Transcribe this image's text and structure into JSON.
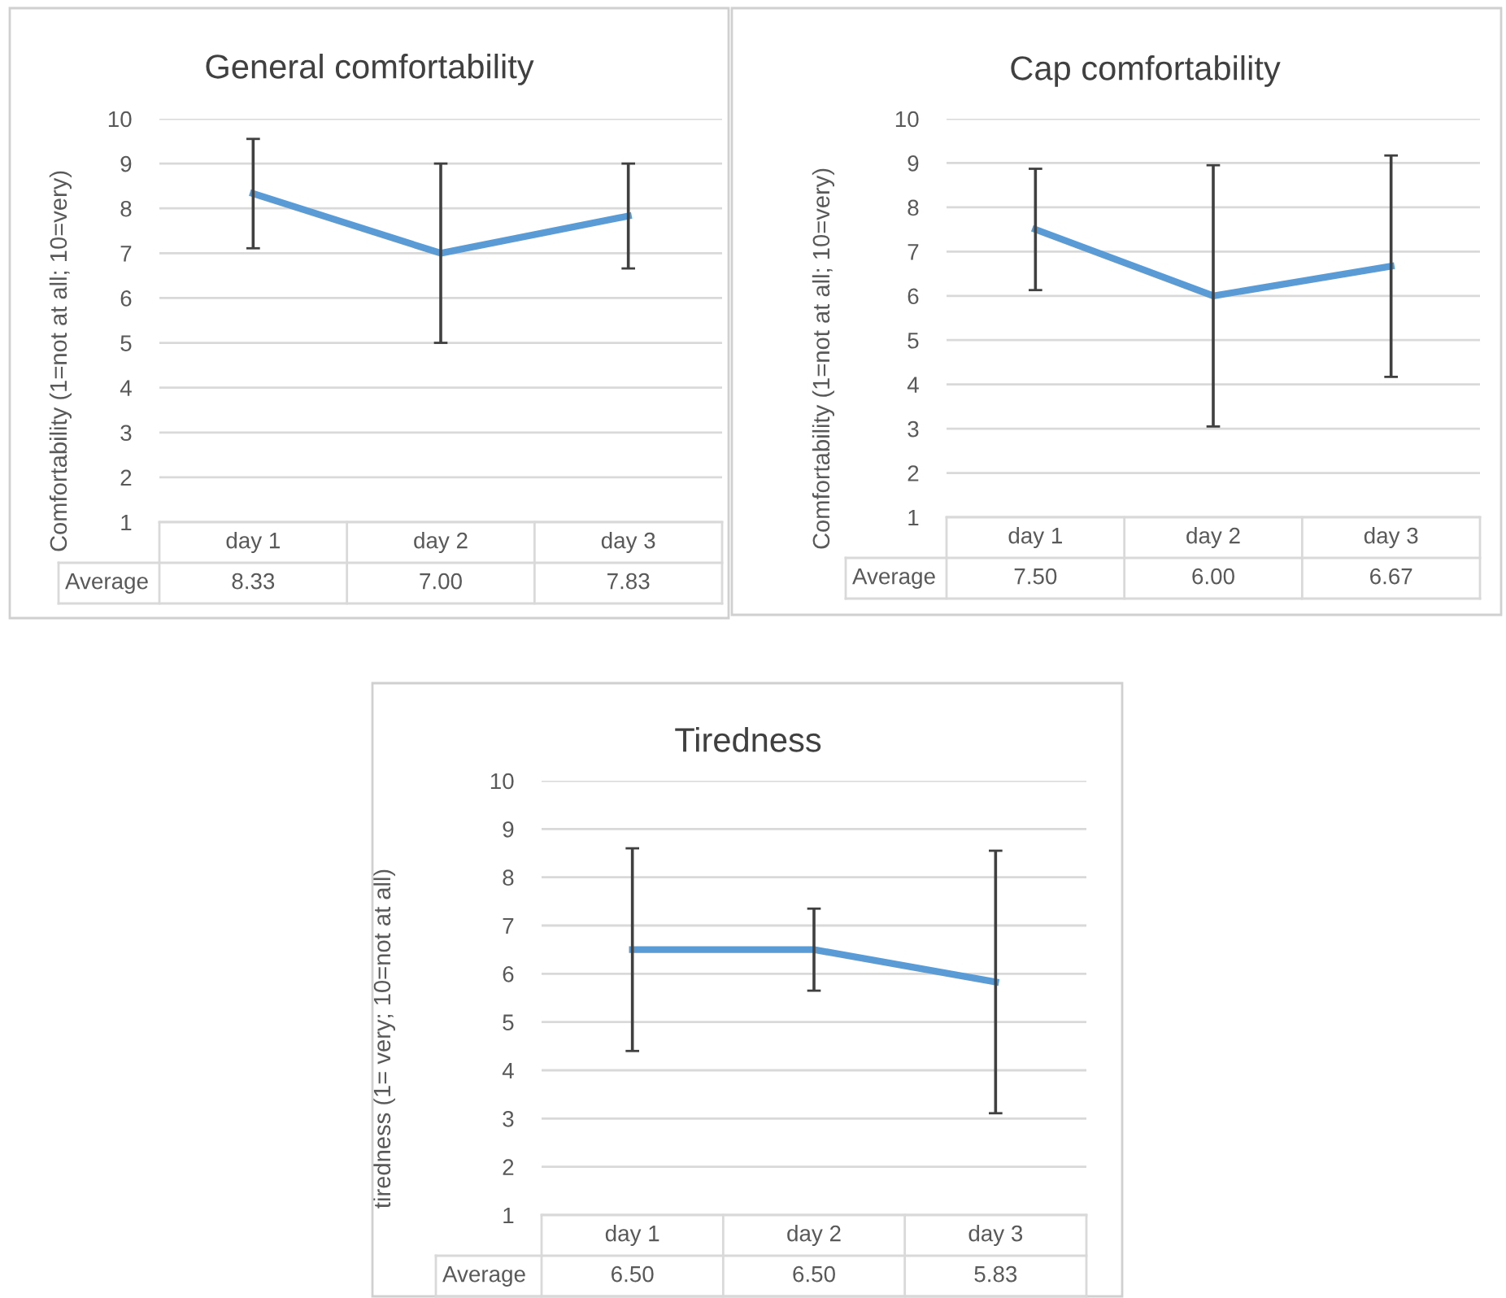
{
  "chart_data": [
    {
      "type": "line",
      "title": "General comfortability",
      "ylabel": "Comfortability (1=not at all; 10=very)",
      "categories": [
        "day 1",
        "day 2",
        "day 3"
      ],
      "ylim": [
        1,
        10
      ],
      "yticks": [
        1,
        2,
        3,
        4,
        5,
        6,
        7,
        8,
        9,
        10
      ],
      "grid": "y",
      "marker": "none",
      "series": [
        {
          "name": "Average",
          "color": "#5b9bd5",
          "values": [
            8.33,
            7.0,
            7.83
          ],
          "value_labels": [
            "8.33",
            "7.00",
            "7.83"
          ],
          "errors": [
            1.22,
            2.0,
            1.17
          ]
        }
      ]
    },
    {
      "type": "line",
      "title": "Cap comfortability",
      "ylabel": "Comfortability (1=not at all; 10=very)",
      "categories": [
        "day 1",
        "day 2",
        "day 3"
      ],
      "ylim": [
        1,
        10
      ],
      "yticks": [
        1,
        2,
        3,
        4,
        5,
        6,
        7,
        8,
        9,
        10
      ],
      "grid": "y",
      "marker": "none",
      "series": [
        {
          "name": "Average",
          "color": "#5b9bd5",
          "values": [
            7.5,
            6.0,
            6.67
          ],
          "value_labels": [
            "7.50",
            "6.00",
            "6.67"
          ],
          "errors": [
            1.37,
            2.95,
            2.5
          ]
        }
      ]
    },
    {
      "type": "line",
      "title": "Tiredness",
      "ylabel": "tiredness (1= very; 10=not at all)",
      "categories": [
        "day 1",
        "day 2",
        "day 3"
      ],
      "ylim": [
        1,
        10
      ],
      "yticks": [
        1,
        2,
        3,
        4,
        5,
        6,
        7,
        8,
        9,
        10
      ],
      "grid": "y",
      "marker": "none",
      "series": [
        {
          "name": "Average",
          "color": "#5b9bd5",
          "values": [
            6.5,
            6.5,
            5.83
          ],
          "value_labels": [
            "6.50",
            "6.50",
            "5.83"
          ],
          "errors": [
            2.1,
            0.85,
            2.72
          ]
        }
      ]
    }
  ]
}
